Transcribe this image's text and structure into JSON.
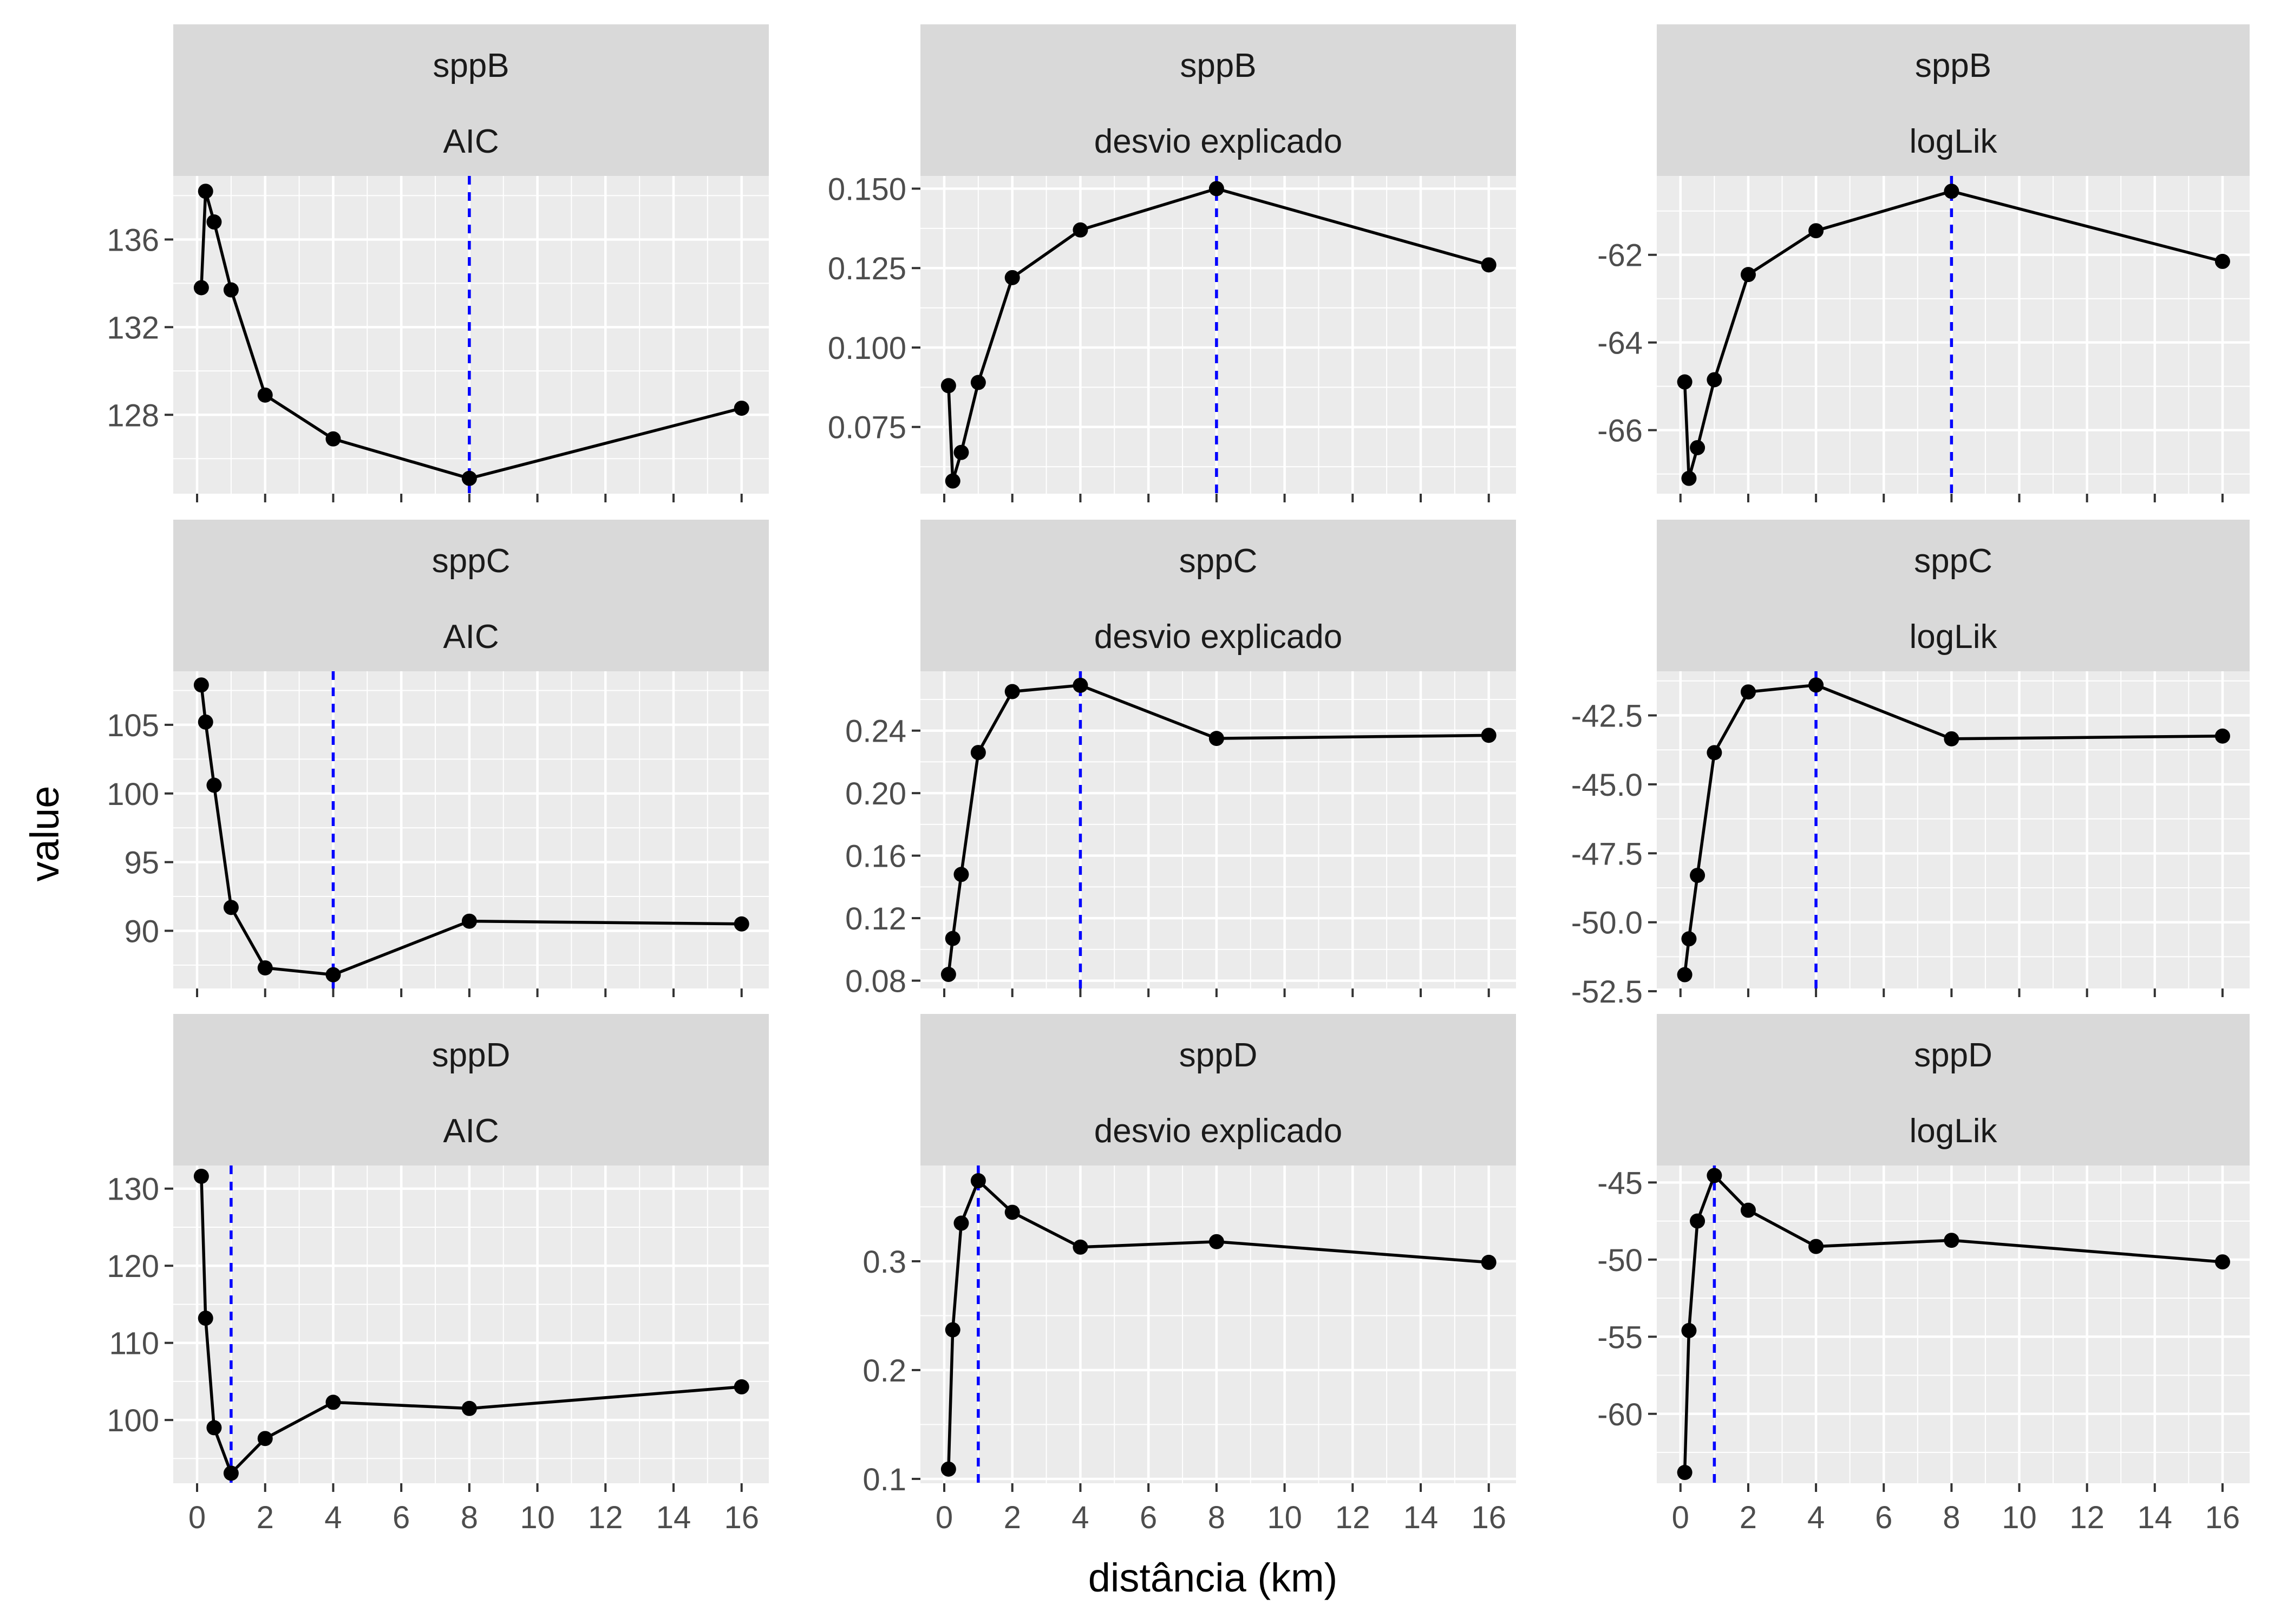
{
  "chart_data": {
    "type": "line",
    "facet_rows": [
      "sppB",
      "sppC",
      "sppD"
    ],
    "facet_cols": [
      "AIC",
      "desvio explicado",
      "logLik"
    ],
    "xlabel": "distância (km)",
    "ylabel": "value",
    "x": [
      0.125,
      0.25,
      0.5,
      1,
      2,
      4,
      8,
      16
    ],
    "x_ticks": [
      0,
      2,
      4,
      6,
      8,
      10,
      12,
      14,
      16
    ],
    "x_tick_labels": [
      "0",
      "2",
      "4",
      "6",
      "8",
      "10",
      "12",
      "14",
      "16"
    ],
    "xlim": [
      -0.7,
      16.8
    ],
    "panels": [
      {
        "species": "sppB",
        "metric": "AIC",
        "values": [
          133.8,
          138.2,
          136.8,
          133.7,
          128.9,
          126.9,
          125.1,
          128.3
        ],
        "vline": 8,
        "ylim": [
          124.4,
          138.9
        ],
        "y_ticks": [
          128,
          132,
          136
        ],
        "y_tick_labels": [
          "128",
          "132",
          "136"
        ]
      },
      {
        "species": "sppB",
        "metric": "desvio explicado",
        "values": [
          0.088,
          0.058,
          0.067,
          0.089,
          0.122,
          0.137,
          0.15,
          0.126
        ],
        "vline": 8,
        "ylim": [
          0.054,
          0.154
        ],
        "y_ticks": [
          0.075,
          0.1,
          0.125,
          0.15
        ],
        "y_tick_labels": [
          "0.075",
          "0.100",
          "0.125",
          "0.150"
        ]
      },
      {
        "species": "sppB",
        "metric": "logLik",
        "values": [
          -64.9,
          -67.1,
          -66.4,
          -64.85,
          -62.45,
          -61.45,
          -60.55,
          -62.15
        ],
        "vline": 8,
        "ylim": [
          -67.45,
          -60.2
        ],
        "y_ticks": [
          -66,
          -64,
          -62
        ],
        "y_tick_labels": [
          "-66",
          "-64",
          "-62"
        ]
      },
      {
        "species": "sppC",
        "metric": "AIC",
        "values": [
          107.9,
          105.2,
          100.6,
          91.7,
          87.3,
          86.8,
          90.7,
          90.5
        ],
        "vline": 4,
        "ylim": [
          85.8,
          108.9
        ],
        "y_ticks": [
          90,
          95,
          100,
          105
        ],
        "y_tick_labels": [
          "90",
          "95",
          "100",
          "105"
        ]
      },
      {
        "species": "sppC",
        "metric": "desvio explicado",
        "values": [
          0.084,
          0.107,
          0.148,
          0.226,
          0.265,
          0.269,
          0.235,
          0.237
        ],
        "vline": 4,
        "ylim": [
          0.075,
          0.278
        ],
        "y_ticks": [
          0.08,
          0.12,
          0.16,
          0.2,
          0.24
        ],
        "y_tick_labels": [
          "0.08",
          "0.12",
          "0.16",
          "0.20",
          "0.24"
        ]
      },
      {
        "species": "sppC",
        "metric": "logLik",
        "values": [
          -51.9,
          -50.6,
          -48.3,
          -43.85,
          -41.65,
          -41.4,
          -43.35,
          -43.25
        ],
        "vline": 4,
        "ylim": [
          -52.4,
          -40.9
        ],
        "y_ticks": [
          -52.5,
          -50,
          -47.5,
          -45,
          -42.5
        ],
        "y_tick_labels": [
          "-52.5",
          "-50.0",
          "-47.5",
          "-45.0",
          "-42.5"
        ]
      },
      {
        "species": "sppD",
        "metric": "AIC",
        "values": [
          131.6,
          113.2,
          99.0,
          93.1,
          97.6,
          102.3,
          101.5,
          104.3
        ],
        "vline": 1,
        "ylim": [
          91.8,
          133.0
        ],
        "y_ticks": [
          100,
          110,
          120,
          130
        ],
        "y_tick_labels": [
          "100",
          "110",
          "120",
          "130"
        ]
      },
      {
        "species": "sppD",
        "metric": "desvio explicado",
        "values": [
          0.109,
          0.237,
          0.335,
          0.374,
          0.345,
          0.313,
          0.318,
          0.299
        ],
        "vline": 1,
        "ylim": [
          0.096,
          0.388
        ],
        "y_ticks": [
          0.1,
          0.2,
          0.3
        ],
        "y_tick_labels": [
          "0.1",
          "0.2",
          "0.3"
        ]
      },
      {
        "species": "sppD",
        "metric": "logLik",
        "values": [
          -63.8,
          -54.6,
          -47.5,
          -44.55,
          -46.8,
          -49.15,
          -48.75,
          -50.15
        ],
        "vline": 1,
        "ylim": [
          -64.5,
          -43.9
        ],
        "y_ticks": [
          -60,
          -55,
          -50,
          -45
        ],
        "y_tick_labels": [
          "-60",
          "-55",
          "-50",
          "-45"
        ]
      }
    ]
  }
}
